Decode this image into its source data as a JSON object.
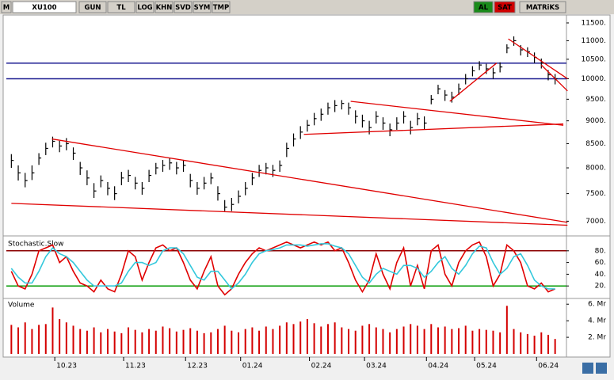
{
  "toolbar": {
    "m": "M",
    "symbol": "XU100",
    "buttons": [
      "GUN",
      "TL",
      "LOG",
      "KHN",
      "SVD",
      "SYM",
      "TMP"
    ],
    "buy": "AL",
    "sell": "SAT",
    "brand": "MATRiKS"
  },
  "chart_data": [
    {
      "type": "hlc",
      "log_scale": true,
      "color": "#000000",
      "ylim": [
        6760,
        11660
      ],
      "yticks": [
        {
          "value": 7000,
          "label": "7000."
        },
        {
          "value": 7500,
          "label": "7500."
        },
        {
          "value": 8000,
          "label": "8000."
        },
        {
          "value": 8500,
          "label": "8500."
        },
        {
          "value": 9000,
          "label": "9000."
        },
        {
          "value": 9500,
          "label": "9500."
        },
        {
          "value": 10000,
          "label": "10000."
        },
        {
          "value": 10500,
          "label": "10500."
        },
        {
          "value": 11000,
          "label": "11000."
        },
        {
          "value": 11500,
          "label": "11500."
        }
      ],
      "high": [
        8280,
        8050,
        7900,
        8050,
        8300,
        8520,
        8650,
        8560,
        8620,
        8420,
        8120,
        7950,
        7700,
        7850,
        7720,
        7640,
        7920,
        7960,
        7820,
        7720,
        7960,
        8100,
        8160,
        8200,
        8120,
        8160,
        7880,
        7720,
        7820,
        7900,
        7640,
        7380,
        7420,
        7560,
        7720,
        7900,
        8060,
        8100,
        8060,
        8150,
        8520,
        8720,
        8880,
        9020,
        9180,
        9280,
        9420,
        9480,
        9480,
        9420,
        9240,
        9140,
        9000,
        9220,
        9080,
        8940,
        9080,
        9220,
        9000,
        9180,
        9100,
        9600,
        9850,
        9720,
        9680,
        9880,
        10120,
        10320,
        10450,
        10380,
        10280,
        10420,
        10900,
        11120,
        10880,
        10820,
        10680,
        10520,
        10220,
        10120
      ],
      "low": [
        8000,
        7750,
        7620,
        7760,
        8060,
        8260,
        8420,
        8320,
        8360,
        8160,
        7860,
        7660,
        7420,
        7620,
        7470,
        7380,
        7660,
        7720,
        7580,
        7480,
        7720,
        7870,
        7920,
        7960,
        7870,
        7920,
        7620,
        7480,
        7580,
        7680,
        7370,
        7180,
        7180,
        7320,
        7470,
        7660,
        7820,
        7870,
        7820,
        7920,
        8220,
        8440,
        8600,
        8760,
        8900,
        9000,
        9140,
        9200,
        9260,
        9140,
        8940,
        8850,
        8700,
        8940,
        8800,
        8660,
        8800,
        8940,
        8700,
        8900,
        8800,
        9380,
        9620,
        9460,
        9420,
        9600,
        9860,
        10060,
        10220,
        10120,
        10000,
        10160,
        10660,
        10860,
        10600,
        10560,
        10400,
        10260,
        9960,
        9860
      ],
      "close": [
        8150,
        7900,
        7750,
        7900,
        8200,
        8400,
        8550,
        8450,
        8500,
        8300,
        8000,
        7800,
        7550,
        7750,
        7600,
        7500,
        7800,
        7850,
        7700,
        7600,
        7850,
        8000,
        8050,
        8100,
        8000,
        8050,
        7750,
        7600,
        7700,
        7800,
        7500,
        7250,
        7300,
        7450,
        7600,
        7800,
        7950,
        8000,
        7950,
        8050,
        8400,
        8600,
        8750,
        8900,
        9050,
        9150,
        9300,
        9350,
        9400,
        9300,
        9100,
        9000,
        8850,
        9100,
        8950,
        8800,
        8950,
        9100,
        8850,
        9050,
        8950,
        9500,
        9750,
        9600,
        9550,
        9750,
        10000,
        10200,
        10350,
        10250,
        10150,
        10300,
        10800,
        11000,
        10750,
        10700,
        10550,
        10400,
        10100,
        10000
      ],
      "levels": [
        10400,
        10000
      ],
      "level_color": "#1a1a90",
      "trendline_color": "#e00000",
      "trendlines": [
        {
          "from": [
            5.9,
            8600
          ],
          "to": [
            80.8,
            6980
          ]
        },
        {
          "from": [
            0,
            7320
          ],
          "to": [
            80.8,
            6930
          ]
        },
        {
          "from": [
            49.3,
            9450
          ],
          "to": [
            80.2,
            8900
          ]
        },
        {
          "from": [
            42.5,
            8700
          ],
          "to": [
            80.2,
            8930
          ]
        },
        {
          "from": [
            63.7,
            9450
          ],
          "to": [
            70.5,
            10400
          ]
        },
        {
          "from": [
            72.2,
            11050
          ],
          "to": [
            80.8,
            10000
          ]
        },
        {
          "from": [
            77,
            10350
          ],
          "to": [
            80.8,
            9700
          ]
        }
      ]
    },
    {
      "type": "line",
      "title": "Stochastic.Slow",
      "ylim": [
        0,
        100
      ],
      "yticks": [
        {
          "value": 20,
          "label": "20."
        },
        {
          "value": 40,
          "label": "40."
        },
        {
          "value": 60,
          "label": "60."
        },
        {
          "value": 80,
          "label": "80."
        }
      ],
      "levels": [
        80,
        20
      ],
      "level_colors": [
        "#8b0000",
        "#009900"
      ],
      "series": [
        {
          "color": "#e00000",
          "values": [
            45,
            20,
            15,
            40,
            80,
            85,
            90,
            60,
            70,
            45,
            25,
            20,
            10,
            30,
            15,
            10,
            40,
            80,
            70,
            30,
            60,
            85,
            90,
            80,
            85,
            60,
            30,
            15,
            45,
            70,
            20,
            5,
            15,
            40,
            60,
            75,
            85,
            80,
            85,
            90,
            95,
            90,
            85,
            90,
            95,
            90,
            95,
            80,
            85,
            60,
            30,
            10,
            30,
            75,
            40,
            15,
            60,
            85,
            20,
            55,
            15,
            80,
            90,
            40,
            20,
            60,
            80,
            90,
            95,
            70,
            20,
            40,
            90,
            80,
            60,
            20,
            15,
            25,
            10,
            15
          ]
        },
        {
          "color": "#33c8dc",
          "values": [
            50,
            35,
            25,
            25,
            45,
            70,
            85,
            75,
            70,
            60,
            45,
            30,
            20,
            20,
            20,
            20,
            25,
            45,
            60,
            60,
            55,
            60,
            80,
            85,
            85,
            75,
            55,
            35,
            30,
            45,
            45,
            30,
            15,
            25,
            40,
            60,
            75,
            80,
            82,
            85,
            90,
            90,
            90,
            88,
            90,
            92,
            92,
            88,
            85,
            75,
            55,
            35,
            25,
            40,
            50,
            45,
            40,
            55,
            55,
            50,
            35,
            45,
            60,
            70,
            50,
            40,
            55,
            75,
            88,
            85,
            60,
            40,
            50,
            70,
            75,
            55,
            30,
            20,
            15,
            15
          ]
        }
      ]
    },
    {
      "type": "bar",
      "title": "Volume",
      "color": "#d40000",
      "ylim": [
        0,
        6.5
      ],
      "yticks": [
        {
          "value": 2,
          "label": "2. Mr"
        },
        {
          "value": 4,
          "label": "4. Mr"
        },
        {
          "value": 6,
          "label": "6. Mr"
        }
      ],
      "categories": [
        null,
        null,
        null,
        null,
        null,
        null,
        null,
        "10.23",
        null,
        null,
        null,
        null,
        null,
        null,
        null,
        null,
        null,
        "11.23",
        null,
        null,
        null,
        null,
        null,
        null,
        null,
        null,
        "12.23",
        null,
        null,
        null,
        null,
        null,
        null,
        null,
        "01.24",
        null,
        null,
        null,
        null,
        null,
        null,
        null,
        null,
        null,
        "02.24",
        null,
        null,
        null,
        null,
        null,
        null,
        null,
        "03.24",
        null,
        null,
        null,
        null,
        null,
        null,
        null,
        null,
        "04.24",
        null,
        null,
        null,
        null,
        null,
        null,
        "05.24",
        null,
        null,
        null,
        null,
        null,
        null,
        null,
        null,
        "06.24",
        null,
        null
      ],
      "values": [
        3.5,
        3.2,
        3.8,
        3.0,
        3.5,
        3.6,
        5.6,
        4.2,
        3.8,
        3.4,
        3.0,
        2.8,
        3.2,
        2.6,
        3.0,
        2.7,
        2.5,
        3.2,
        2.9,
        2.6,
        3.0,
        2.8,
        3.3,
        3.1,
        2.7,
        2.9,
        3.1,
        2.8,
        2.5,
        2.6,
        3.0,
        3.4,
        2.8,
        2.6,
        3.0,
        3.2,
        2.8,
        3.3,
        3.0,
        3.4,
        3.8,
        3.6,
        3.9,
        4.2,
        3.7,
        3.3,
        3.6,
        3.8,
        3.2,
        3.0,
        2.8,
        3.4,
        3.6,
        3.2,
        3.0,
        2.6,
        3.0,
        3.3,
        3.6,
        3.4,
        3.0,
        3.6,
        3.2,
        3.3,
        3.0,
        3.1,
        3.4,
        2.8,
        3.0,
        2.9,
        2.8,
        2.6,
        5.8,
        3.0,
        2.6,
        2.4,
        2.2,
        2.6,
        2.3,
        1.8
      ]
    }
  ]
}
